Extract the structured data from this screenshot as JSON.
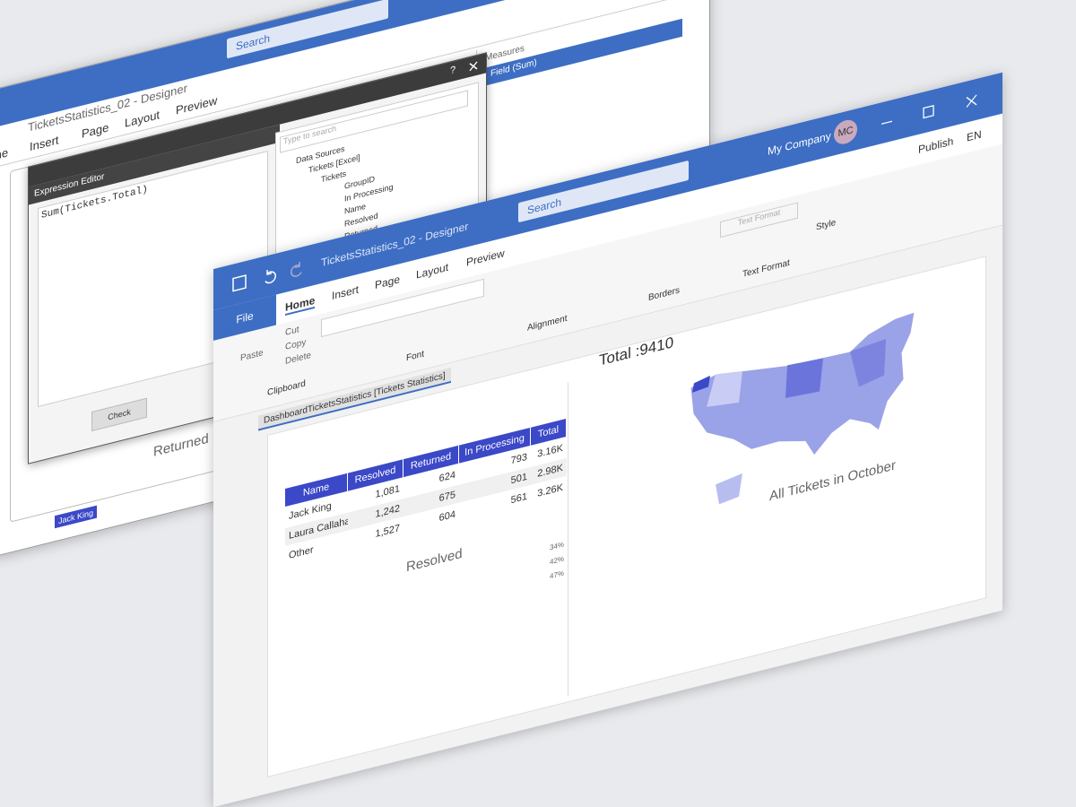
{
  "back_window": {
    "search": "Search",
    "title": "TicketsStatistics_02 - Designer",
    "menu": [
      "me",
      "Insert",
      "Page",
      "Layout",
      "Preview"
    ],
    "measures_label": "Measures",
    "measure_field": "Field (Sum)",
    "panel_caption": "Returned",
    "tag": "Jack King"
  },
  "expression_editor": {
    "help": "?",
    "title": "Expression Editor",
    "expression": "Sum(Tickets.Total)",
    "search_placeholder": "Type to search",
    "tree": [
      "Data Sources",
      "Tickets [Excel]",
      "Tickets",
      "GroupID",
      "In Processing",
      "Name",
      "Resolved",
      "Returned"
    ],
    "check_button": "Check"
  },
  "front_window": {
    "title": "TicketsStatistics_02 - Designer",
    "search": "Search",
    "company": "My Company",
    "initials": "MC",
    "publish": "Publish",
    "language": "EN",
    "tabs": [
      "File",
      "Home",
      "Insert",
      "Page",
      "Layout",
      "Preview"
    ],
    "clipboard": {
      "paste": "Paste",
      "cut": "Cut",
      "copy": "Copy",
      "delete": "Delete",
      "label": "Clipboard"
    },
    "groups": {
      "font": "Font",
      "alignment": "Alignment",
      "borders": "Borders",
      "text_format_button": "Text Format",
      "text_format": "Text Format",
      "style": "Style"
    }
  },
  "dashboard": {
    "caption": "DashboardTicketsStatistics [Tickets Statistics]",
    "total": "Total :9410",
    "table": {
      "header": [
        "Name",
        "Resolved",
        "Returned",
        "In Processing",
        "Total"
      ],
      "rows": [
        [
          "Jack King",
          "1,081",
          "624",
          "793",
          "3.16K"
        ],
        [
          "Laura Callahan",
          "1,242",
          "675",
          "501",
          "2.98K"
        ],
        [
          "Other",
          "1,527",
          "604",
          "561",
          "3.26K"
        ]
      ]
    },
    "resolved_caption": "Resolved",
    "percents": [
      "34%",
      "42%",
      "47%"
    ],
    "map_title": "All Tickets in October"
  }
}
